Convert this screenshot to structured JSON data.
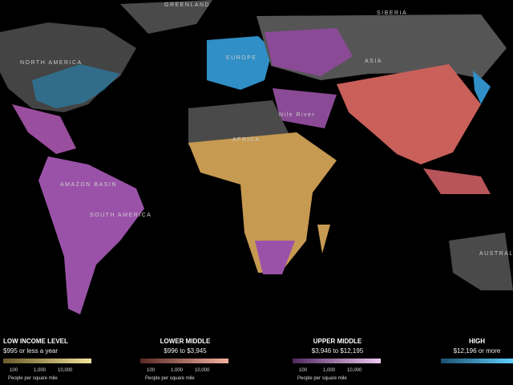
{
  "map_labels": [
    "GREENLAND",
    "SIBERIA",
    "NORTH AMERICA",
    "EUROPE",
    "ASIA",
    "AFRICA",
    "Nile River",
    "AMAZON BASIN",
    "SOUTH AMERICA",
    "AUSTRALIA"
  ],
  "legend": [
    {
      "title": "LOW INCOME LEVEL",
      "range": "$995 or less a year",
      "ticks": [
        "100",
        "1,000",
        "10,000"
      ],
      "note": "People per square mile",
      "colors": [
        "#6b5a2a",
        "#f3e39a"
      ]
    },
    {
      "title": "LOWER MIDDLE",
      "range": "$996 to $3,945",
      "ticks": [
        "100",
        "1,000",
        "10,000"
      ],
      "note": "People per square mile",
      "colors": [
        "#5a2a24",
        "#f3b0a0"
      ]
    },
    {
      "title": "UPPER MIDDLE",
      "range": "$3,946 to $12,195",
      "ticks": [
        "100",
        "1,000",
        "10,000"
      ],
      "note": "People per square mile",
      "colors": [
        "#4e2a5c",
        "#f0c8f5"
      ]
    },
    {
      "title": "HIGH",
      "range": "$12,196 or more",
      "colors": [
        "#1c4f6e",
        "#5fd0ff"
      ]
    }
  ]
}
